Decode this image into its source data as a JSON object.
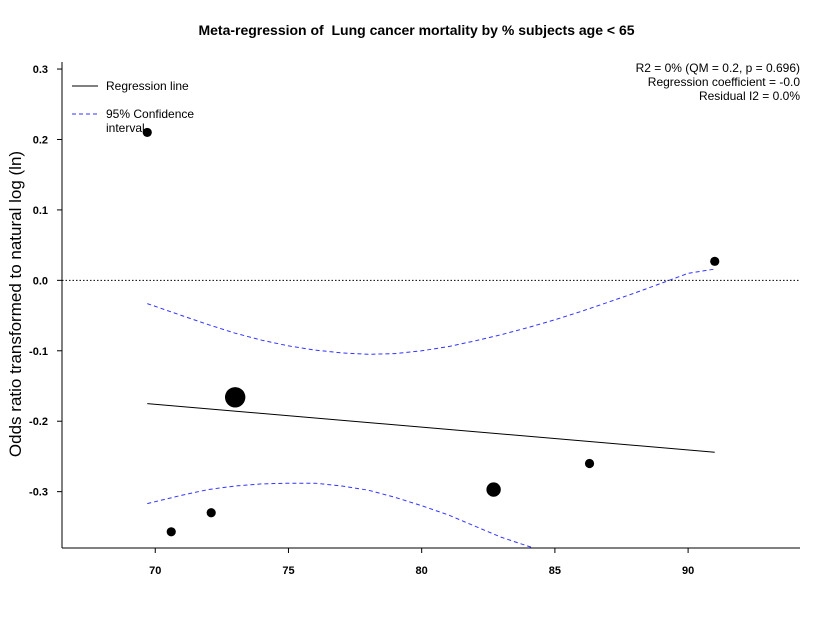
{
  "chart_data": {
    "type": "scatter",
    "title": "Meta-regression of  Lung cancer mortality by % subjects age < 65",
    "xlabel": "",
    "ylabel": "Odds ratio transformed to natural log (ln)",
    "xlim": [
      66.5,
      94.2
    ],
    "ylim": [
      -0.38,
      0.31
    ],
    "xticks": [
      70,
      75,
      80,
      85,
      90
    ],
    "yticks": [
      0.3,
      0.2,
      0.1,
      0.0,
      -0.1,
      -0.2,
      -0.3
    ],
    "ytick_labels": [
      "0.3",
      "0.2",
      "0.1",
      "0.0",
      "-0.1",
      "-0.2",
      "-0.3"
    ],
    "reference_line_y": 0.0,
    "points": [
      {
        "x": 69.7,
        "y": 0.21,
        "weight": 1
      },
      {
        "x": 70.6,
        "y": -0.357,
        "weight": 1
      },
      {
        "x": 72.1,
        "y": -0.33,
        "weight": 1
      },
      {
        "x": 73.0,
        "y": -0.166,
        "weight": 10
      },
      {
        "x": 82.7,
        "y": -0.297,
        "weight": 4
      },
      {
        "x": 86.3,
        "y": -0.26,
        "weight": 1
      },
      {
        "x": 91.0,
        "y": 0.027,
        "weight": 1
      }
    ],
    "regression_line": {
      "x": [
        69.7,
        91.0
      ],
      "y": [
        -0.175,
        -0.244
      ]
    },
    "ci_upper": {
      "x": [
        69.7,
        71,
        72,
        73,
        74,
        75,
        76,
        77,
        78,
        79,
        80,
        81,
        82,
        83,
        84,
        85,
        86,
        87,
        88,
        89,
        90,
        91
      ],
      "y": [
        -0.033,
        -0.05,
        -0.063,
        -0.075,
        -0.085,
        -0.093,
        -0.099,
        -0.103,
        -0.105,
        -0.104,
        -0.1,
        -0.094,
        -0.086,
        -0.077,
        -0.067,
        -0.056,
        -0.044,
        -0.031,
        -0.018,
        -0.004,
        0.01,
        0.016
      ]
    },
    "ci_lower": {
      "x": [
        69.7,
        71,
        72,
        73,
        74,
        75,
        76,
        77,
        78,
        79,
        80,
        81,
        82,
        83,
        84.2
      ],
      "y": [
        -0.317,
        -0.305,
        -0.297,
        -0.292,
        -0.289,
        -0.288,
        -0.288,
        -0.292,
        -0.298,
        -0.308,
        -0.32,
        -0.333,
        -0.349,
        -0.365,
        -0.38
      ]
    },
    "legend": {
      "placement": "top-left",
      "entries": [
        {
          "label": "Regression line",
          "style": "solid",
          "color": "#000000"
        },
        {
          "label": "95% Confidence\ninterval",
          "style": "dashed",
          "color": "#3333ff"
        }
      ]
    },
    "stats": [
      "R2 = 0% (QM = 0.2, p = 0.696)",
      "Regression coefficient = -0.0",
      "Residual I2 = 0.0%"
    ],
    "colors": {
      "ci": "#3333ff",
      "regression": "#000000",
      "points": "#000000"
    }
  }
}
